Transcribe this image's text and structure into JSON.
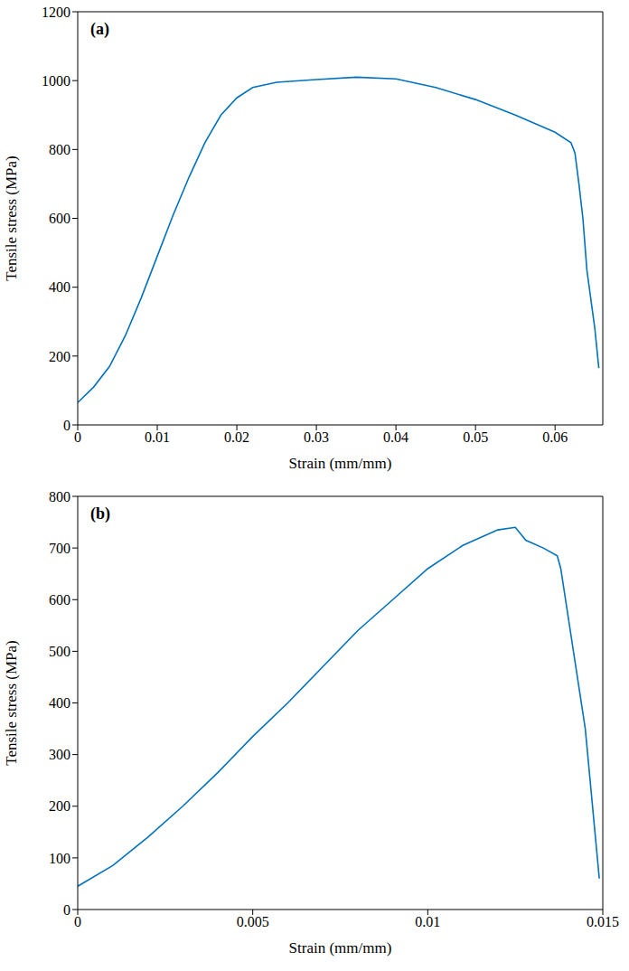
{
  "chart_data": [
    {
      "type": "line",
      "title": "(a)",
      "x_label": "Strain (mm/mm)",
      "y_label": "Tensile stress (MPa)",
      "xlim": [
        0,
        0.066
      ],
      "xticks": [
        0,
        0.01,
        0.02,
        0.03,
        0.04,
        0.05,
        0.06
      ],
      "ylim": [
        0,
        1200
      ],
      "yticks": [
        0,
        200,
        400,
        600,
        800,
        1000,
        1200
      ],
      "grid": false,
      "series": [
        {
          "name": "a",
          "color": "#0072bd",
          "x": [
            0,
            0.002,
            0.004,
            0.006,
            0.008,
            0.01,
            0.012,
            0.014,
            0.016,
            0.018,
            0.02,
            0.022,
            0.025,
            0.03,
            0.035,
            0.04,
            0.045,
            0.05,
            0.055,
            0.06,
            0.062,
            0.0625,
            0.063,
            0.0635,
            0.064,
            0.065,
            0.0655
          ],
          "values": [
            65,
            110,
            170,
            260,
            370,
            490,
            610,
            720,
            820,
            900,
            950,
            980,
            995,
            1003,
            1010,
            1005,
            980,
            945,
            900,
            850,
            820,
            790,
            700,
            600,
            450,
            280,
            165
          ]
        }
      ]
    },
    {
      "type": "line",
      "title": "(b)",
      "x_label": "Strain (mm/mm)",
      "y_label": "Tensile stress (MPa)",
      "xlim": [
        0,
        0.015
      ],
      "xticks": [
        0,
        0.005,
        0.01,
        0.015
      ],
      "ylim": [
        0,
        800
      ],
      "yticks": [
        0,
        100,
        200,
        300,
        400,
        500,
        600,
        700,
        800
      ],
      "grid": false,
      "series": [
        {
          "name": "b",
          "color": "#0072bd",
          "x": [
            0,
            0.001,
            0.002,
            0.003,
            0.004,
            0.005,
            0.006,
            0.007,
            0.008,
            0.009,
            0.01,
            0.011,
            0.012,
            0.0125,
            0.0128,
            0.0133,
            0.0137,
            0.0138,
            0.0145,
            0.0149
          ],
          "values": [
            45,
            85,
            140,
            200,
            265,
            335,
            400,
            470,
            540,
            600,
            660,
            705,
            735,
            740,
            715,
            700,
            685,
            660,
            350,
            60
          ]
        }
      ]
    }
  ]
}
